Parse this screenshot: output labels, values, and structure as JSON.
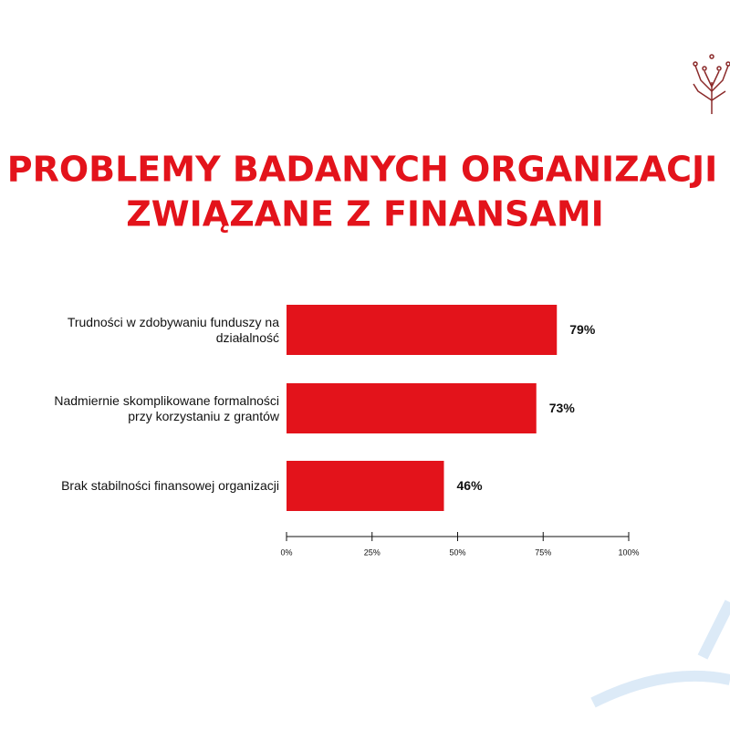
{
  "chart_data": {
    "type": "hbar",
    "title": [
      "PROBLEMY BADANYCH ORGANIZACJI",
      "ZWIĄZANE Z FINANSAMI"
    ],
    "categories": [
      "Trudności w zdobywaniu funduszy na działalność",
      "Nadmiernie skomplikowane formalności przy korzystaniu z grantów",
      "Brak stabilności finansowej organizacji"
    ],
    "values": [
      79,
      73,
      46
    ],
    "value_labels": [
      "79%",
      "73%",
      "46%"
    ],
    "color": "#e3131b",
    "xlim": [
      0,
      100
    ],
    "xticks": [
      {
        "value": 0,
        "label": "0%"
      },
      {
        "value": 25,
        "label": "25%"
      },
      {
        "value": 50,
        "label": "50%"
      },
      {
        "value": 75,
        "label": "75%"
      },
      {
        "value": 100,
        "label": "100%"
      }
    ]
  }
}
